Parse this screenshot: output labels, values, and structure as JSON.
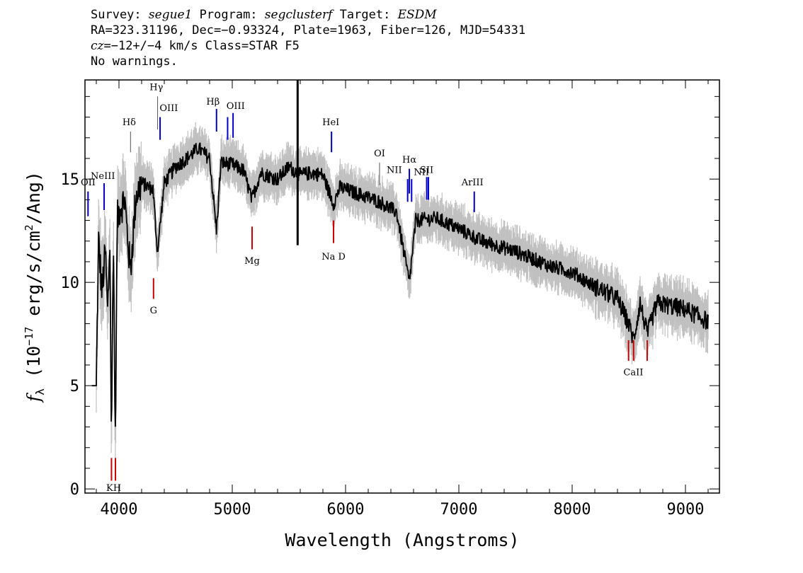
{
  "header": {
    "survey_label": "Survey:",
    "survey": "segue1",
    "program_label": "Program:",
    "program": "segclusterf",
    "target_label": "Target:",
    "target": "ESDM",
    "line2": "RA=323.31196, Dec=−0.93324, Plate=1963, Fiber=126, MJD=54331",
    "cz_symbol": "cz",
    "cz_value": "=−12+/−4",
    "cz_rest": " km/s Class=STAR F5",
    "line4": "No warnings."
  },
  "chart_data": {
    "type": "line",
    "xlabel": "Wavelength (Angstroms)",
    "ylabel_prefix": "f",
    "ylabel_sub": "λ",
    "ylabel_unit_a": " (10",
    "ylabel_exp": "−17",
    "ylabel_unit_b": " erg/s/cm",
    "ylabel_exp2": "2",
    "ylabel_unit_c": "/Ang)",
    "xlim": [
      3700,
      9300
    ],
    "ylim": [
      -0.2,
      19.8
    ],
    "x_ticks": [
      4000,
      5000,
      6000,
      7000,
      8000,
      9000
    ],
    "y_ticks": [
      0,
      5,
      10,
      15
    ],
    "colors": {
      "spectrum": "#000000",
      "error_band": "#c0c0c0",
      "emission": "#0000cc",
      "absorption": "#cc0000",
      "model": "#555555"
    },
    "spectrum_anchors": [
      [
        3800,
        5.0
      ],
      [
        3820,
        12.0
      ],
      [
        3850,
        9.5
      ],
      [
        3880,
        11.5
      ],
      [
        3900,
        8.5
      ],
      [
        3920,
        12.0
      ],
      [
        3934,
        2.0
      ],
      [
        3950,
        12.5
      ],
      [
        3968,
        2.3
      ],
      [
        3985,
        13.0
      ],
      [
        4000,
        13.5
      ],
      [
        4050,
        14.0
      ],
      [
        4101,
        10.5
      ],
      [
        4150,
        14.2
      ],
      [
        4200,
        14.8
      ],
      [
        4300,
        14.5
      ],
      [
        4340,
        11.5
      ],
      [
        4400,
        14.8
      ],
      [
        4500,
        15.6
      ],
      [
        4600,
        16.0
      ],
      [
        4700,
        16.5
      ],
      [
        4800,
        16.0
      ],
      [
        4861,
        12.5
      ],
      [
        4900,
        15.8
      ],
      [
        5000,
        15.7
      ],
      [
        5100,
        15.4
      ],
      [
        5172,
        14.0
      ],
      [
        5250,
        15.3
      ],
      [
        5400,
        15.0
      ],
      [
        5500,
        15.6
      ],
      [
        5600,
        15.2
      ],
      [
        5700,
        15.3
      ],
      [
        5800,
        15.2
      ],
      [
        5893,
        13.8
      ],
      [
        5950,
        14.6
      ],
      [
        6100,
        14.3
      ],
      [
        6300,
        13.9
      ],
      [
        6450,
        13.4
      ],
      [
        6563,
        10.0
      ],
      [
        6620,
        13.0
      ],
      [
        6800,
        13.1
      ],
      [
        7000,
        12.6
      ],
      [
        7200,
        12.0
      ],
      [
        7500,
        11.5
      ],
      [
        7800,
        10.8
      ],
      [
        8000,
        10.5
      ],
      [
        8200,
        9.8
      ],
      [
        8400,
        9.2
      ],
      [
        8498,
        8.0
      ],
      [
        8542,
        7.2
      ],
      [
        8600,
        9.0
      ],
      [
        8662,
        7.5
      ],
      [
        8750,
        9.0
      ],
      [
        9000,
        8.7
      ],
      [
        9200,
        8.1
      ]
    ],
    "spike": {
      "x": 5577,
      "y_low": 11.8,
      "y_high": 19.8
    },
    "emission_lines": [
      {
        "label": "OII",
        "x": 3727,
        "y_bottom": 13.2,
        "y_top": 14.4,
        "lx": 3728,
        "ly": 14.7,
        "color": "blue"
      },
      {
        "label": "NeIII",
        "x": 3869,
        "y_bottom": 13.5,
        "y_top": 14.8,
        "lx": 3858,
        "ly": 15.0,
        "color": "blue"
      },
      {
        "label": "Hδ",
        "x": 4102,
        "y_bottom": 16.3,
        "y_top": 17.3,
        "lx": 4090,
        "ly": 17.6,
        "color": "gray"
      },
      {
        "label": "Hγ",
        "x": 4341,
        "y_bottom": 17.4,
        "y_top": 19.0,
        "lx": 4330,
        "ly": 19.3,
        "color": "gray"
      },
      {
        "label": "OIII",
        "x": 4363,
        "y_bottom": 16.9,
        "y_top": 18.0,
        "lx": 4440,
        "ly": 18.3,
        "color": "blue"
      },
      {
        "label": "Hβ",
        "x": 4861,
        "y_bottom": 17.3,
        "y_top": 18.4,
        "lx": 4830,
        "ly": 18.6,
        "color": "blue"
      },
      {
        "label": "",
        "x": 4959,
        "y_bottom": 16.9,
        "y_top": 18.0,
        "lx": 4959,
        "ly": 18.0,
        "color": "blue"
      },
      {
        "label": "OIII",
        "x": 5007,
        "y_bottom": 17.0,
        "y_top": 18.2,
        "lx": 5030,
        "ly": 18.4,
        "color": "blue"
      },
      {
        "label": "HeI",
        "x": 5876,
        "y_bottom": 16.3,
        "y_top": 17.3,
        "lx": 5870,
        "ly": 17.6,
        "color": "blue"
      },
      {
        "label": "OI",
        "x": 6300,
        "y_bottom": 14.7,
        "y_top": 15.8,
        "lx": 6300,
        "ly": 16.1,
        "color": "gray"
      },
      {
        "label": "NII",
        "x": 6548,
        "y_bottom": 13.9,
        "y_top": 15.0,
        "lx": 6430,
        "ly": 15.3,
        "color": "blue"
      },
      {
        "label": "Hα",
        "x": 6563,
        "y_bottom": 14.3,
        "y_top": 15.5,
        "lx": 6563,
        "ly": 15.8,
        "color": "blue"
      },
      {
        "label": "NII",
        "x": 6583,
        "y_bottom": 13.9,
        "y_top": 15.0,
        "lx": 6670,
        "ly": 15.2,
        "color": "blue"
      },
      {
        "label": "SII",
        "x": 6716,
        "y_bottom": 14.0,
        "y_top": 15.1,
        "lx": 6716,
        "ly": 15.3,
        "color": "blue"
      },
      {
        "label": "",
        "x": 6731,
        "y_bottom": 14.0,
        "y_top": 15.1,
        "lx": 6731,
        "ly": 15.1,
        "color": "blue"
      },
      {
        "label": "ArIII",
        "x": 7136,
        "y_bottom": 13.4,
        "y_top": 14.4,
        "lx": 7120,
        "ly": 14.7,
        "color": "blue"
      }
    ],
    "absorption_lines": [
      {
        "label": "K",
        "x": 3934,
        "y_bottom": 0.4,
        "y_top": 1.5,
        "lx": 3918,
        "ly": -0.1,
        "color": "red"
      },
      {
        "label": "H",
        "x": 3969,
        "y_bottom": 0.4,
        "y_top": 1.5,
        "lx": 3985,
        "ly": -0.1,
        "color": "red"
      },
      {
        "label": "G",
        "x": 4305,
        "y_bottom": 9.2,
        "y_top": 10.2,
        "lx": 4305,
        "ly": 8.5,
        "color": "red"
      },
      {
        "label": "Mg",
        "x": 5175,
        "y_bottom": 11.6,
        "y_top": 12.7,
        "lx": 5175,
        "ly": 10.9,
        "color": "red"
      },
      {
        "label": "Na D",
        "x": 5894,
        "y_bottom": 11.9,
        "y_top": 13.0,
        "lx": 5894,
        "ly": 11.1,
        "color": "red"
      },
      {
        "label": "CaII",
        "x": 8498,
        "y_bottom": 6.2,
        "y_top": 7.2,
        "lx": 8540,
        "ly": 5.5,
        "color": "red"
      },
      {
        "label": "",
        "x": 8542,
        "y_bottom": 6.2,
        "y_top": 7.2,
        "lx": 8542,
        "ly": 7.2,
        "color": "red"
      },
      {
        "label": "",
        "x": 8662,
        "y_bottom": 6.2,
        "y_top": 7.2,
        "lx": 8662,
        "ly": 7.2,
        "color": "red"
      }
    ]
  }
}
